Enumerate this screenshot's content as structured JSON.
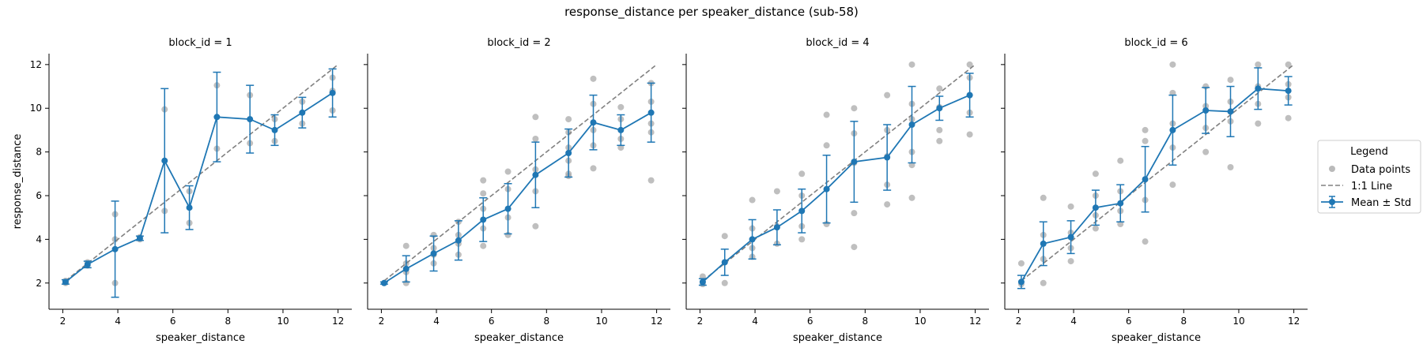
{
  "figure": {
    "title": "response_distance per speaker_distance (sub-58)"
  },
  "legend": {
    "title": "Legend",
    "items": [
      {
        "key": "points",
        "label": "Data points"
      },
      {
        "key": "line",
        "label": "1:1 Line"
      },
      {
        "key": "mean",
        "label": "Mean ± Std"
      }
    ]
  },
  "colors": {
    "mean": "#1f77b4",
    "points": "#a9a9a9",
    "identity": "#808080"
  },
  "chart_data": [
    {
      "type": "line",
      "title": "block_id = 1",
      "xlabel": "speaker_distance",
      "ylabel": "response_distance",
      "xlim": [
        1.5,
        12.5
      ],
      "ylim": [
        0.8,
        12.5
      ],
      "xticks": [
        2,
        4,
        6,
        8,
        10,
        12
      ],
      "yticks": [
        2,
        4,
        6,
        8,
        10,
        12
      ],
      "series": [
        {
          "name": "Mean ± Std",
          "x": [
            2.1,
            2.9,
            3.9,
            4.8,
            5.7,
            6.6,
            7.6,
            8.8,
            9.7,
            10.7,
            11.8
          ],
          "y": [
            2.05,
            2.85,
            3.55,
            4.05,
            7.6,
            5.45,
            9.6,
            9.5,
            9.0,
            9.8,
            10.7
          ],
          "std": [
            0.1,
            0.15,
            2.2,
            0.1,
            3.3,
            1.0,
            2.05,
            1.55,
            0.7,
            0.7,
            1.1
          ]
        },
        {
          "name": "Data points",
          "x": [
            2.1,
            2.1,
            2.9,
            2.9,
            3.9,
            3.9,
            3.9,
            4.8,
            4.8,
            5.7,
            5.7,
            6.6,
            6.6,
            7.6,
            7.6,
            8.8,
            8.8,
            9.7,
            9.7,
            10.7,
            10.7,
            11.8,
            11.8,
            11.8
          ],
          "y": [
            2.0,
            2.1,
            2.8,
            2.95,
            2.0,
            5.15,
            4.0,
            4.0,
            4.1,
            9.95,
            5.3,
            6.2,
            4.75,
            11.05,
            8.15,
            10.6,
            8.4,
            9.5,
            8.5,
            10.3,
            9.3,
            11.4,
            9.9,
            10.8
          ]
        },
        {
          "name": "1:1 Line",
          "x": [
            2.1,
            12.0
          ],
          "y": [
            2.1,
            12.0
          ]
        }
      ]
    },
    {
      "type": "line",
      "title": "block_id = 2",
      "xlabel": "speaker_distance",
      "ylabel": "",
      "xlim": [
        1.5,
        12.5
      ],
      "ylim": [
        0.8,
        12.5
      ],
      "xticks": [
        2,
        4,
        6,
        8,
        10,
        12
      ],
      "yticks": [
        2,
        4,
        6,
        8,
        10,
        12
      ],
      "series": [
        {
          "name": "Mean ± Std",
          "x": [
            2.1,
            2.9,
            3.9,
            4.8,
            5.7,
            6.6,
            7.6,
            8.8,
            9.7,
            10.7,
            11.8
          ],
          "y": [
            2.0,
            2.65,
            3.35,
            3.95,
            4.9,
            5.4,
            6.95,
            7.95,
            9.35,
            9.0,
            9.8
          ],
          "std": [
            0.05,
            0.6,
            0.8,
            0.9,
            1.0,
            1.15,
            1.5,
            1.1,
            1.25,
            0.7,
            1.35
          ]
        },
        {
          "name": "Data points",
          "x": [
            2.1,
            2.9,
            2.9,
            2.9,
            2.9,
            3.9,
            3.9,
            3.9,
            3.9,
            4.8,
            4.8,
            4.8,
            4.8,
            5.7,
            5.7,
            5.7,
            5.7,
            5.7,
            6.6,
            6.6,
            6.6,
            6.6,
            7.6,
            7.6,
            7.6,
            7.6,
            7.6,
            8.8,
            8.8,
            8.8,
            8.8,
            8.8,
            8.8,
            9.7,
            9.7,
            9.7,
            9.7,
            9.7,
            10.7,
            10.7,
            10.7,
            10.7,
            11.8,
            11.8,
            11.8,
            11.8,
            11.8
          ],
          "y": [
            2.0,
            3.7,
            2.0,
            2.9,
            2.5,
            4.2,
            3.6,
            3.3,
            2.9,
            4.8,
            4.2,
            3.8,
            3.3,
            6.7,
            6.1,
            5.4,
            4.5,
            3.7,
            7.1,
            6.3,
            5.0,
            4.2,
            9.6,
            8.6,
            7.2,
            6.2,
            4.6,
            9.5,
            8.9,
            8.2,
            7.6,
            7.0,
            6.9,
            11.35,
            10.2,
            9.0,
            8.3,
            7.25,
            10.05,
            9.5,
            8.6,
            8.2,
            11.15,
            10.3,
            9.3,
            8.9,
            6.7
          ]
        },
        {
          "name": "1:1 Line",
          "x": [
            2.1,
            12.0
          ],
          "y": [
            2.1,
            12.0
          ]
        }
      ]
    },
    {
      "type": "line",
      "title": "block_id = 4",
      "xlabel": "speaker_distance",
      "ylabel": "",
      "xlim": [
        1.5,
        12.5
      ],
      "ylim": [
        0.8,
        12.5
      ],
      "xticks": [
        2,
        4,
        6,
        8,
        10,
        12
      ],
      "yticks": [
        2,
        4,
        6,
        8,
        10,
        12
      ],
      "series": [
        {
          "name": "Mean ± Std",
          "x": [
            2.1,
            2.9,
            3.9,
            4.8,
            5.7,
            6.6,
            7.6,
            8.8,
            9.7,
            10.7,
            11.8
          ],
          "y": [
            2.05,
            2.95,
            4.0,
            4.55,
            5.3,
            6.3,
            7.55,
            7.75,
            9.25,
            10.0,
            10.6
          ],
          "std": [
            0.15,
            0.6,
            0.9,
            0.8,
            1.0,
            1.55,
            1.85,
            1.5,
            1.75,
            0.55,
            1.0
          ]
        },
        {
          "name": "Data points",
          "x": [
            2.1,
            2.1,
            2.9,
            2.9,
            2.9,
            3.9,
            3.9,
            3.9,
            3.9,
            4.8,
            4.8,
            4.8,
            5.7,
            5.7,
            5.7,
            5.7,
            6.6,
            6.6,
            6.6,
            6.6,
            7.6,
            7.6,
            7.6,
            7.6,
            7.6,
            8.8,
            8.8,
            8.8,
            8.8,
            8.8,
            9.7,
            9.7,
            9.7,
            9.7,
            9.7,
            9.7,
            10.7,
            10.7,
            10.7,
            10.7,
            11.8,
            11.8,
            11.8,
            11.8,
            11.8
          ],
          "y": [
            2.3,
            1.95,
            4.15,
            2.95,
            2.0,
            5.8,
            4.5,
            3.6,
            3.2,
            6.2,
            4.6,
            3.8,
            7.0,
            6.0,
            4.6,
            4.0,
            9.7,
            8.3,
            6.3,
            4.7,
            10.0,
            8.85,
            7.5,
            5.2,
            3.65,
            10.6,
            9.0,
            7.8,
            6.5,
            5.6,
            12.0,
            10.2,
            9.5,
            8.0,
            7.4,
            5.9,
            10.9,
            10.05,
            9.0,
            8.5,
            12.0,
            11.4,
            10.6,
            9.8,
            8.8
          ]
        },
        {
          "name": "1:1 Line",
          "x": [
            2.1,
            12.0
          ],
          "y": [
            2.1,
            12.0
          ]
        }
      ]
    },
    {
      "type": "line",
      "title": "block_id = 6",
      "xlabel": "speaker_distance",
      "ylabel": "",
      "xlim": [
        1.5,
        12.5
      ],
      "ylim": [
        0.8,
        12.5
      ],
      "xticks": [
        2,
        4,
        6,
        8,
        10,
        12
      ],
      "yticks": [
        2,
        4,
        6,
        8,
        10,
        12
      ],
      "series": [
        {
          "name": "Mean ± Std",
          "x": [
            2.1,
            2.9,
            3.9,
            4.8,
            5.7,
            6.6,
            7.6,
            8.8,
            9.7,
            10.7,
            11.8
          ],
          "y": [
            2.05,
            3.8,
            4.1,
            5.45,
            5.65,
            6.75,
            9.0,
            9.9,
            9.85,
            10.9,
            10.8
          ],
          "std": [
            0.3,
            1.0,
            0.75,
            0.8,
            0.85,
            1.5,
            1.6,
            1.05,
            1.15,
            0.95,
            0.65
          ]
        },
        {
          "name": "Data points",
          "x": [
            2.1,
            2.1,
            2.9,
            2.9,
            2.9,
            2.9,
            3.9,
            3.9,
            3.9,
            3.9,
            4.8,
            4.8,
            4.8,
            4.8,
            5.7,
            5.7,
            5.7,
            5.7,
            6.6,
            6.6,
            6.6,
            6.6,
            7.6,
            7.6,
            7.6,
            7.6,
            7.6,
            8.8,
            8.8,
            8.8,
            8.8,
            9.7,
            9.7,
            9.7,
            9.7,
            10.7,
            10.7,
            10.7,
            10.7,
            11.8,
            11.8,
            11.8,
            11.8
          ],
          "y": [
            2.9,
            1.95,
            5.9,
            4.2,
            3.1,
            2.0,
            5.5,
            4.3,
            3.6,
            3.0,
            7.0,
            6.0,
            5.1,
            4.5,
            7.6,
            6.2,
            5.3,
            4.7,
            9.0,
            8.5,
            5.8,
            3.9,
            12.0,
            10.7,
            9.3,
            8.2,
            6.5,
            11.0,
            10.1,
            9.1,
            8.0,
            11.3,
            10.3,
            9.4,
            7.3,
            12.0,
            11.0,
            10.2,
            9.3,
            12.0,
            11.1,
            10.5,
            9.55
          ]
        },
        {
          "name": "1:1 Line",
          "x": [
            2.1,
            12.0
          ],
          "y": [
            2.1,
            12.0
          ]
        }
      ]
    }
  ]
}
